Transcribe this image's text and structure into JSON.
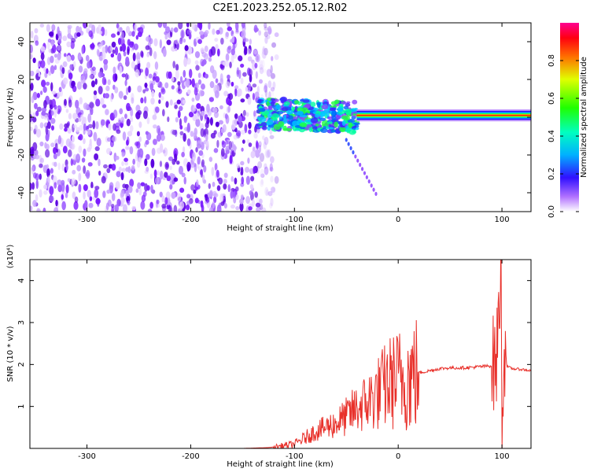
{
  "title": "C2E1.2023.252.05.12.R02",
  "chart_data": [
    {
      "type": "heatmap",
      "xlabel": "Height of straight line (km)",
      "ylabel": "Frequency (Hz)",
      "xlim": [
        -355,
        128
      ],
      "ylim": [
        -50,
        50
      ],
      "xticks": [
        -300,
        -200,
        -100,
        0,
        100
      ],
      "yticks": [
        -40,
        -20,
        0,
        20,
        40
      ],
      "colorbar": {
        "label": "Normalized spectral amplitude",
        "range": [
          0.0,
          1.0
        ],
        "ticks": [
          "0.0",
          "0.2",
          "0.4",
          "0.6",
          "0.8"
        ],
        "colormap": [
          "#ffffff",
          "#7b00ff",
          "#0030ff",
          "#00d8ff",
          "#00ff40",
          "#c8ff00",
          "#ff9000",
          "#ff0000",
          "#ff0080"
        ]
      },
      "regions": [
        {
          "x": [
            -355,
            -135
          ],
          "freq": [
            -50,
            50
          ],
          "amplitude": 0.1
        },
        {
          "x": [
            -135,
            -40
          ],
          "freq": [
            -10,
            10
          ],
          "amplitude": 0.45
        },
        {
          "x": [
            -40,
            128
          ],
          "freq": [
            -2,
            4
          ],
          "amplitude": 0.85
        }
      ],
      "grid": false
    },
    {
      "type": "line",
      "xlabel": "Height of straight line (km)",
      "ylabel": "SNR (10 * v/v)",
      "y_multiplier": "(x10⁴)",
      "xlim": [
        -355,
        128
      ],
      "ylim": [
        0,
        4.5
      ],
      "xticks": [
        -300,
        -200,
        -100,
        0,
        100
      ],
      "yticks": [
        1,
        2,
        3,
        4
      ],
      "color": "#e8302a",
      "series": [
        {
          "x": [
            -355,
            -300,
            -250,
            -200,
            -150,
            -125,
            -115,
            -100,
            -90,
            -80,
            -70,
            -60,
            -50,
            -40,
            -30,
            -20,
            -10,
            0,
            10,
            20,
            30,
            40,
            50,
            60,
            70,
            80,
            90,
            95,
            97,
            99,
            100,
            101,
            103,
            105,
            110,
            120,
            128
          ],
          "y": [
            0.0,
            0.0,
            0.0,
            0.0,
            0.0,
            0.02,
            0.05,
            0.1,
            0.25,
            0.4,
            0.5,
            0.6,
            0.75,
            0.95,
            1.1,
            1.3,
            1.55,
            1.65,
            1.7,
            1.8,
            1.85,
            1.9,
            1.92,
            1.92,
            1.93,
            1.95,
            1.97,
            2.1,
            3.3,
            4.4,
            0.1,
            1.9,
            2.3,
            1.95,
            1.9,
            1.88,
            1.85
          ]
        }
      ],
      "grid": false
    }
  ]
}
